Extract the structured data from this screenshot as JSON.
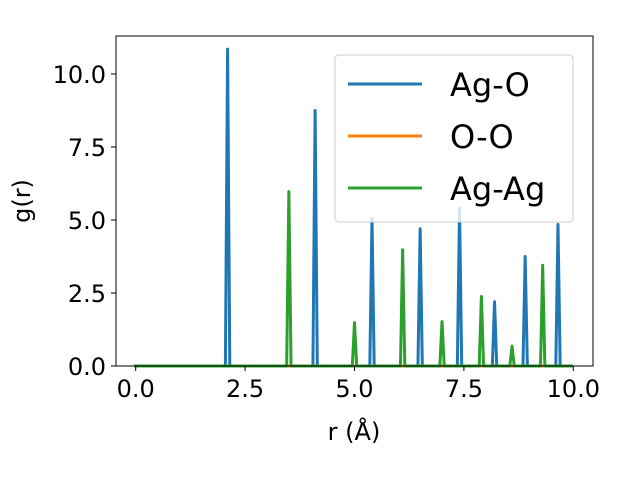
{
  "chart_data": {
    "type": "line",
    "xlabel": "r (Å)",
    "ylabel": "g(r)",
    "xlim": [
      -0.45,
      10.45
    ],
    "ylim": [
      0,
      11.3
    ],
    "xticks": [
      0.0,
      2.5,
      5.0,
      7.5,
      10.0
    ],
    "xtick_labels": [
      "0.0",
      "2.5",
      "5.0",
      "7.5",
      "10.0"
    ],
    "yticks": [
      0.0,
      2.5,
      5.0,
      7.5,
      10.0
    ],
    "ytick_labels": [
      "0.0",
      "2.5",
      "5.0",
      "7.5",
      "10.0"
    ],
    "grid": false,
    "legend_position": "top-right",
    "x_start": 0.0,
    "x_end": 9.95,
    "series": [
      {
        "name": "Ag-O",
        "color": "#1f77b4",
        "peaks": [
          [
            2.1,
            10.85
          ],
          [
            4.1,
            8.75
          ],
          [
            5.4,
            5.05
          ],
          [
            6.5,
            4.7
          ],
          [
            7.4,
            5.4
          ],
          [
            8.2,
            2.2
          ],
          [
            8.9,
            3.75
          ],
          [
            9.65,
            4.85
          ]
        ]
      },
      {
        "name": "O-O",
        "color": "#ff7f0e",
        "peaks": []
      },
      {
        "name": "Ag-Ag",
        "color": "#2ca02c",
        "peaks": [
          [
            3.5,
            5.97
          ],
          [
            5.0,
            1.48
          ],
          [
            6.1,
            3.98
          ],
          [
            7.0,
            1.52
          ],
          [
            7.9,
            2.38
          ],
          [
            8.6,
            0.68
          ],
          [
            9.3,
            3.45
          ]
        ]
      }
    ]
  }
}
